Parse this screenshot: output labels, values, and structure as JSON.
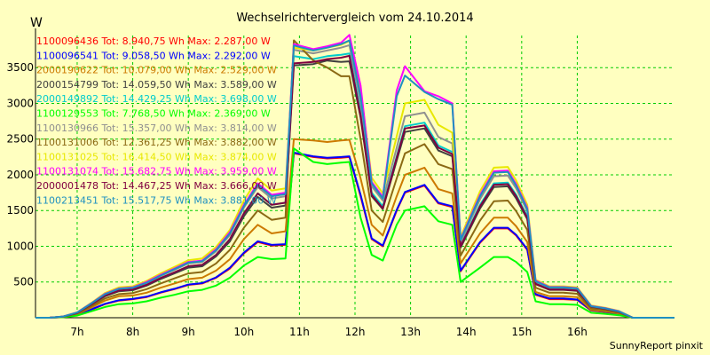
{
  "chart_data": {
    "type": "line",
    "title": "Wechselrichtervergleich vom 24.10.2014",
    "ylabel": "W",
    "footer": "SunnyReport pinxit",
    "background": "#ffffc0",
    "grid": true,
    "legend_placement": "top-left",
    "ylim": [
      0,
      3950
    ],
    "xlim": [
      6.25,
      17.75
    ],
    "yticks": [
      500,
      1000,
      1500,
      2000,
      2500,
      3000,
      3500
    ],
    "yticklabels": [
      "500",
      "1000",
      "1500",
      "2000",
      "2500",
      "3000",
      "3500"
    ],
    "xticks": [
      7,
      8,
      9,
      10,
      11,
      12,
      13,
      14,
      15,
      16
    ],
    "xticklabels": [
      "7h",
      "8h",
      "9h",
      "10h",
      "11h",
      "12h",
      "13h",
      "14h",
      "15h",
      "16h"
    ],
    "x": [
      6.25,
      6.5,
      6.75,
      7.0,
      7.25,
      7.5,
      7.75,
      8.0,
      8.25,
      8.5,
      8.75,
      9.0,
      9.25,
      9.5,
      9.75,
      10.0,
      10.25,
      10.5,
      10.75,
      10.9,
      11.25,
      11.5,
      11.75,
      11.9,
      12.1,
      12.3,
      12.5,
      12.75,
      12.9,
      13.25,
      13.5,
      13.75,
      13.9,
      14.25,
      14.5,
      14.75,
      14.9,
      15.1,
      15.25,
      15.5,
      15.75,
      16.0,
      16.25,
      16.5,
      16.75,
      17.0,
      17.25,
      17.5,
      17.75
    ],
    "series": [
      {
        "name": "1100096436 Tot: 8.940,75 Wh Max: 2.287,00 W",
        "color": "#ff0000",
        "values": [
          0,
          0,
          10,
          40,
          110,
          190,
          240,
          260,
          290,
          350,
          400,
          460,
          480,
          560,
          690,
          900,
          1060,
          1010,
          1020,
          2300,
          2250,
          2230,
          2240,
          2250,
          1700,
          1100,
          1000,
          1500,
          1750,
          1850,
          1600,
          1550,
          650,
          1050,
          1250,
          1250,
          1150,
          950,
          320,
          260,
          260,
          250,
          100,
          80,
          50,
          0,
          0,
          0,
          0
        ]
      },
      {
        "name": "1100096541 Tot: 9.058,50 Wh Max: 2.292,00 W",
        "color": "#0000ff",
        "values": [
          0,
          0,
          10,
          40,
          115,
          195,
          245,
          265,
          295,
          355,
          405,
          465,
          485,
          565,
          700,
          910,
          1070,
          1020,
          1030,
          2310,
          2260,
          2240,
          2250,
          2260,
          1720,
          1110,
          1010,
          1510,
          1760,
          1860,
          1610,
          1560,
          660,
          1060,
          1260,
          1260,
          1160,
          960,
          330,
          270,
          270,
          255,
          105,
          85,
          55,
          0,
          0,
          0,
          0
        ]
      },
      {
        "name": "2000190622 Tot: 10.079,00 Wh Max: 2.529,00 W",
        "color": "#cc7a00",
        "values": [
          0,
          0,
          12,
          50,
          140,
          240,
          300,
          310,
          350,
          420,
          480,
          540,
          560,
          660,
          820,
          1100,
          1300,
          1180,
          1210,
          2500,
          2480,
          2460,
          2480,
          2490,
          1950,
          1300,
          1150,
          1700,
          2000,
          2100,
          1800,
          1740,
          760,
          1180,
          1400,
          1400,
          1280,
          1060,
          360,
          300,
          300,
          290,
          110,
          90,
          60,
          0,
          0,
          0,
          0
        ]
      },
      {
        "name": "2000154799 Tot: 14.059,50 Wh Max: 3.589,00 W",
        "color": "#404040",
        "values": [
          0,
          0,
          15,
          65,
          180,
          300,
          370,
          385,
          450,
          540,
          620,
          700,
          720,
          860,
          1070,
          1420,
          1690,
          1540,
          1570,
          3530,
          3550,
          3600,
          3580,
          3589,
          2800,
          1700,
          1520,
          2200,
          2600,
          2650,
          2340,
          2260,
          980,
          1530,
          1830,
          1840,
          1670,
          1380,
          470,
          390,
          390,
          375,
          150,
          120,
          80,
          0,
          0,
          0,
          0
        ]
      },
      {
        "name": "2000149892 Tot: 14.429,25 Wh Max: 3.698,00 W",
        "color": "#00cccc",
        "values": [
          0,
          0,
          16,
          68,
          185,
          310,
          380,
          395,
          460,
          555,
          635,
          720,
          740,
          880,
          1100,
          1460,
          1740,
          1580,
          1610,
          3660,
          3620,
          3660,
          3680,
          3698,
          2880,
          1750,
          1560,
          2260,
          2680,
          2730,
          2410,
          2320,
          1010,
          1580,
          1880,
          1890,
          1720,
          1420,
          480,
          400,
          400,
          385,
          155,
          125,
          85,
          0,
          0,
          0,
          0
        ]
      },
      {
        "name": "1100129553 Tot: 7.768,50 Wh Max: 2.369,00 W",
        "color": "#00ff00",
        "values": [
          0,
          0,
          8,
          30,
          90,
          150,
          190,
          200,
          230,
          280,
          320,
          370,
          390,
          450,
          560,
          730,
          850,
          820,
          830,
          2369,
          2180,
          2150,
          2170,
          2180,
          1400,
          880,
          800,
          1300,
          1500,
          1560,
          1350,
          1300,
          500,
          700,
          850,
          850,
          780,
          640,
          230,
          190,
          190,
          180,
          70,
          55,
          35,
          0,
          0,
          0,
          0
        ]
      },
      {
        "name": "1100130966 Tot: 15.357,00 Wh Max: 3.814,00 W",
        "color": "#909090",
        "values": [
          0,
          0,
          17,
          72,
          195,
          325,
          400,
          415,
          485,
          585,
          670,
          760,
          780,
          930,
          1160,
          1540,
          1830,
          1670,
          1700,
          3750,
          3700,
          3740,
          3780,
          3814,
          3020,
          1840,
          1640,
          2380,
          2820,
          2870,
          2530,
          2440,
          1060,
          1660,
          1980,
          1990,
          1810,
          1490,
          500,
          420,
          420,
          405,
          160,
          130,
          90,
          0,
          0,
          0,
          0
        ]
      },
      {
        "name": "1100131006 Tot: 12.361,25 Wh Max: 3.882,00 W",
        "color": "#8b6914",
        "values": [
          0,
          0,
          14,
          58,
          160,
          270,
          330,
          345,
          400,
          480,
          550,
          620,
          640,
          760,
          950,
          1260,
          1500,
          1370,
          1400,
          3882,
          3600,
          3500,
          3380,
          3380,
          2500,
          1500,
          1340,
          1950,
          2300,
          2430,
          2150,
          2080,
          870,
          1360,
          1630,
          1640,
          1490,
          1230,
          420,
          350,
          350,
          335,
          130,
          105,
          70,
          0,
          0,
          0,
          0
        ]
      },
      {
        "name": "1100131025 Tot: 16.414,50 Wh Max: 3.874,00 W",
        "color": "#e8e800",
        "values": [
          0,
          0,
          18,
          76,
          205,
          345,
          425,
          440,
          515,
          620,
          710,
          805,
          830,
          990,
          1230,
          1640,
          1950,
          1780,
          1810,
          3780,
          3740,
          3780,
          3820,
          3874,
          3200,
          1960,
          1740,
          2540,
          3000,
          3050,
          2700,
          2590,
          1130,
          1770,
          2100,
          2110,
          1920,
          1580,
          530,
          440,
          440,
          425,
          170,
          140,
          95,
          0,
          0,
          0,
          0
        ]
      },
      {
        "name": "1100131074 Tot: 15.682,75 Wh Max: 3.959,00 W",
        "color": "#ff00ff",
        "values": [
          0,
          0,
          18,
          75,
          200,
          335,
          410,
          425,
          500,
          600,
          690,
          780,
          800,
          960,
          1200,
          1580,
          1880,
          1720,
          1750,
          3830,
          3760,
          3800,
          3850,
          3959,
          3250,
          1900,
          1690,
          3180,
          3520,
          3170,
          3100,
          3000,
          1100,
          1720,
          2050,
          2060,
          1870,
          1540,
          520,
          430,
          430,
          415,
          165,
          135,
          92,
          0,
          0,
          0,
          0
        ]
      },
      {
        "name": "2000001478 Tot: 14.467,25 Wh Max: 3.666,00 W",
        "color": "#800040",
        "values": [
          0,
          0,
          16,
          68,
          185,
          310,
          380,
          395,
          460,
          555,
          635,
          720,
          740,
          880,
          1100,
          1460,
          1740,
          1580,
          1610,
          3560,
          3580,
          3620,
          3640,
          3666,
          2830,
          1720,
          1530,
          2240,
          2650,
          2690,
          2380,
          2290,
          1000,
          1560,
          1860,
          1870,
          1700,
          1400,
          475,
          395,
          395,
          380,
          155,
          125,
          85,
          0,
          0,
          0,
          0
        ]
      },
      {
        "name": "1100213451 Tot: 15.517,75 Wh Max: 3.881,00 W",
        "color": "#1e90c0",
        "values": [
          0,
          0,
          17,
          73,
          198,
          330,
          405,
          420,
          490,
          590,
          680,
          770,
          790,
          945,
          1180,
          1560,
          1860,
          1700,
          1730,
          3810,
          3740,
          3780,
          3830,
          3881,
          3100,
          1880,
          1670,
          3100,
          3390,
          3160,
          3060,
          2980,
          1090,
          1700,
          2030,
          2040,
          1850,
          1520,
          510,
          425,
          425,
          410,
          162,
          132,
          90,
          0,
          0,
          0,
          0
        ]
      }
    ]
  }
}
